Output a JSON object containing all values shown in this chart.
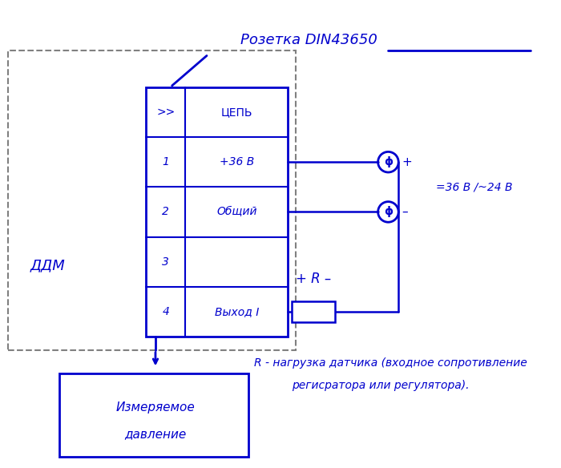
{
  "bg_color": "#ffffff",
  "blue": "#0000cd",
  "gray_dashed": "#808080",
  "title_text": "Розетка DIN43650",
  "rows_left": [
    ">>",
    "1",
    "2",
    "3",
    "4"
  ],
  "rows_right": [
    "ЦЕПЬ",
    "+36 В",
    "Общий",
    "",
    "Выход I"
  ],
  "ddm_label": "ДДМ",
  "pressure_line1": "Измеряемое",
  "pressure_line2": "давление",
  "note_line1": "R - нагрузка датчика (входное сопротивление",
  "note_line2": "регисратора или регулятора).",
  "voltage_label": "=36 В /~24 В",
  "R_label": "+ R –"
}
